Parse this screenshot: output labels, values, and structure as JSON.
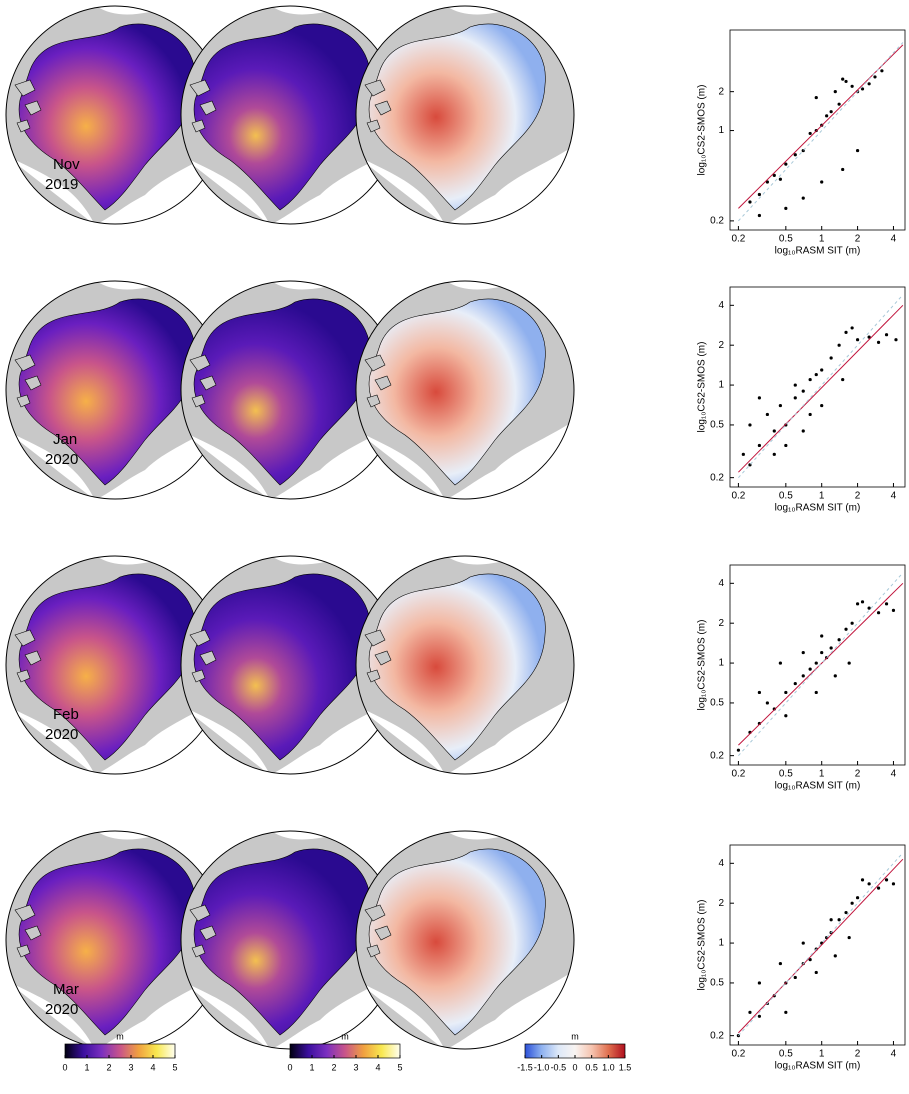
{
  "map_labels": [
    {
      "month": "Nov",
      "year": "2019"
    },
    {
      "month": "Jan",
      "year": "2020"
    },
    {
      "month": "Feb",
      "year": "2020"
    },
    {
      "month": "Mar",
      "year": "2020"
    }
  ],
  "chart_data": [
    {
      "type": "scatter",
      "xlabel": "log₁₀RASM SIT (m)",
      "ylabel": "log₁₀CS2-SMOS (m)",
      "xscale": "log",
      "yscale": "log",
      "xlim": [
        0.17,
        5
      ],
      "ylim": [
        0.17,
        6
      ],
      "xticks": [
        0.2,
        0.5,
        1,
        2,
        4
      ],
      "yticks": [
        0.2,
        1,
        2
      ],
      "series": [
        {
          "style": "markers",
          "color": "#000000",
          "x": [
            0.25,
            0.3,
            0.35,
            0.4,
            0.45,
            0.5,
            0.6,
            0.7,
            0.8,
            0.9,
            1.0,
            1.1,
            1.2,
            1.4,
            1.5,
            1.6,
            1.8,
            2.0,
            2.2,
            2.5,
            2.8,
            3.2,
            0.5,
            0.7,
            1.0,
            1.5,
            2.0,
            0.9,
            1.3,
            0.3
          ],
          "values": [
            0.28,
            0.32,
            0.4,
            0.45,
            0.42,
            0.55,
            0.65,
            0.7,
            0.95,
            1.0,
            1.1,
            1.3,
            1.4,
            1.6,
            2.5,
            2.4,
            2.2,
            2.0,
            2.1,
            2.3,
            2.6,
            2.9,
            0.25,
            0.3,
            0.4,
            0.5,
            0.7,
            1.8,
            2.0,
            0.22
          ]
        },
        {
          "style": "line",
          "color": "#c0143c",
          "x": [
            0.2,
            4.8
          ],
          "values": [
            0.25,
            4.6
          ]
        },
        {
          "style": "dashed",
          "color": "#a8c8d8",
          "x": [
            0.2,
            4.8
          ],
          "values": [
            0.2,
            4.8
          ]
        }
      ]
    },
    {
      "type": "scatter",
      "xlabel": "log₁₀RASM SIT (m)",
      "ylabel": "log₁₀CS2-SMOS (m)",
      "xscale": "log",
      "yscale": "log",
      "xlim": [
        0.17,
        5
      ],
      "ylim": [
        0.17,
        5.5
      ],
      "xticks": [
        0.2,
        0.5,
        1,
        2,
        4
      ],
      "yticks": [
        0.2,
        0.5,
        1,
        2,
        4
      ],
      "series": [
        {
          "style": "markers",
          "color": "#000000",
          "x": [
            0.22,
            0.25,
            0.3,
            0.35,
            0.4,
            0.45,
            0.5,
            0.6,
            0.7,
            0.8,
            0.9,
            1.0,
            1.2,
            1.4,
            1.6,
            1.8,
            2.0,
            2.5,
            3.0,
            3.5,
            4.2,
            0.3,
            0.4,
            0.5,
            0.6,
            0.8,
            1.0,
            1.5,
            0.25,
            0.7
          ],
          "values": [
            0.3,
            0.5,
            0.35,
            0.6,
            0.45,
            0.7,
            0.5,
            0.8,
            0.9,
            1.1,
            1.2,
            1.3,
            1.6,
            2.0,
            2.5,
            2.7,
            2.2,
            2.3,
            2.1,
            2.4,
            2.2,
            0.8,
            0.3,
            0.35,
            1.0,
            0.6,
            0.7,
            1.1,
            0.25,
            0.45
          ]
        },
        {
          "style": "line",
          "color": "#c0143c",
          "x": [
            0.2,
            4.8
          ],
          "values": [
            0.22,
            4.0
          ]
        },
        {
          "style": "dashed",
          "color": "#a8c8d8",
          "x": [
            0.2,
            4.8
          ],
          "values": [
            0.2,
            4.8
          ]
        }
      ]
    },
    {
      "type": "scatter",
      "xlabel": "log₁₀RASM SIT (m)",
      "ylabel": "log₁₀CS2-SMOS (m)",
      "xscale": "log",
      "yscale": "log",
      "xlim": [
        0.17,
        5
      ],
      "ylim": [
        0.17,
        5.5
      ],
      "xticks": [
        0.2,
        0.5,
        1,
        2,
        4
      ],
      "yticks": [
        0.2,
        0.5,
        1,
        2,
        4
      ],
      "series": [
        {
          "style": "markers",
          "color": "#000000",
          "x": [
            0.2,
            0.25,
            0.3,
            0.35,
            0.4,
            0.5,
            0.6,
            0.7,
            0.8,
            0.9,
            1.0,
            1.1,
            1.2,
            1.4,
            1.6,
            1.8,
            2.0,
            2.2,
            2.5,
            3.0,
            3.5,
            4.0,
            0.3,
            0.5,
            0.7,
            0.9,
            1.3,
            1.7,
            0.45,
            1.0
          ],
          "values": [
            0.22,
            0.3,
            0.35,
            0.5,
            0.45,
            0.6,
            0.7,
            0.8,
            0.9,
            1.0,
            1.2,
            1.1,
            1.3,
            1.5,
            1.8,
            2.0,
            2.8,
            2.9,
            2.6,
            2.4,
            2.8,
            2.5,
            0.6,
            0.4,
            1.2,
            0.6,
            0.8,
            1.0,
            1.0,
            1.6
          ]
        },
        {
          "style": "line",
          "color": "#c0143c",
          "x": [
            0.2,
            4.8
          ],
          "values": [
            0.24,
            4.0
          ]
        },
        {
          "style": "dashed",
          "color": "#a8c8d8",
          "x": [
            0.2,
            4.8
          ],
          "values": [
            0.2,
            4.8
          ]
        }
      ]
    },
    {
      "type": "scatter",
      "xlabel": "log₁₀RASM SIT (m)",
      "ylabel": "log₁₀CS2-SMOS (m)",
      "xscale": "log",
      "yscale": "log",
      "xlim": [
        0.17,
        5
      ],
      "ylim": [
        0.17,
        5.5
      ],
      "xticks": [
        0.2,
        0.5,
        1,
        2,
        4
      ],
      "yticks": [
        0.2,
        0.5,
        1,
        2,
        4
      ],
      "series": [
        {
          "style": "markers",
          "color": "#000000",
          "x": [
            0.2,
            0.25,
            0.3,
            0.35,
            0.4,
            0.5,
            0.6,
            0.7,
            0.8,
            0.9,
            1.0,
            1.1,
            1.2,
            1.4,
            1.6,
            1.8,
            2.0,
            2.2,
            2.5,
            3.0,
            3.5,
            4.0,
            0.3,
            0.5,
            0.7,
            0.9,
            1.3,
            1.7,
            0.45,
            1.2
          ],
          "values": [
            0.2,
            0.3,
            0.28,
            0.35,
            0.4,
            0.5,
            0.55,
            0.7,
            0.75,
            0.9,
            1.0,
            1.1,
            1.2,
            1.5,
            1.7,
            2.0,
            2.2,
            3.0,
            2.8,
            2.6,
            3.0,
            2.8,
            0.5,
            0.3,
            1.0,
            0.6,
            0.8,
            1.1,
            0.7,
            1.5
          ]
        },
        {
          "style": "line",
          "color": "#c0143c",
          "x": [
            0.2,
            4.8
          ],
          "values": [
            0.21,
            4.3
          ]
        },
        {
          "style": "dashed",
          "color": "#a8c8d8",
          "x": [
            0.2,
            4.8
          ],
          "values": [
            0.2,
            4.8
          ]
        }
      ]
    },
    {
      "type": "colorbar",
      "title": "m",
      "xlim": [
        0,
        5
      ],
      "xticks": [
        0,
        1,
        2,
        3,
        4,
        5
      ],
      "colors": [
        "#000010",
        "#3b0f9e",
        "#7b2fc0",
        "#c8548a",
        "#f0a040",
        "#f8e850",
        "#fffff0"
      ]
    },
    {
      "type": "colorbar",
      "title": "m",
      "xlim": [
        0,
        5
      ],
      "xticks": [
        0,
        1,
        2,
        3,
        4,
        5
      ],
      "colors": [
        "#000010",
        "#3b0f9e",
        "#7b2fc0",
        "#c8548a",
        "#f0a040",
        "#f8e850",
        "#fffff0"
      ]
    },
    {
      "type": "colorbar",
      "title": "m",
      "xlim": [
        -1.5,
        1.5
      ],
      "xticks": [
        -1.5,
        {
          "value": -1,
          "label": "-1.0"
        },
        -0.5,
        0,
        0.5,
        {
          "value": 1,
          "label": "1.0"
        },
        1.5
      ],
      "colors": [
        "#2b50d8",
        "#8fb2f0",
        "#dde8f8",
        "#f8f4f2",
        "#f6c4b0",
        "#e0704f",
        "#b00f1e"
      ]
    }
  ]
}
